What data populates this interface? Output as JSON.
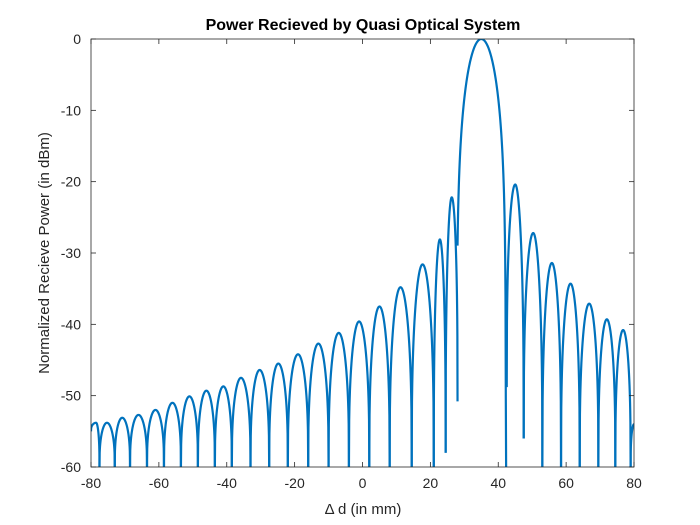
{
  "chart_data": {
    "type": "line",
    "title": "Power Recieved by Quasi Optical System",
    "xlabel": "Δ d (in mm)",
    "ylabel": "Normalized Recieve Power (in dBm)",
    "xlim": [
      -80,
      80
    ],
    "ylim": [
      -60,
      0
    ],
    "xticks": [
      "-80",
      "-60",
      "-40",
      "-20",
      "0",
      "20",
      "40",
      "60",
      "80"
    ],
    "yticks": [
      "0",
      "-10",
      "-20",
      "-30",
      "-40",
      "-50",
      "-60"
    ],
    "grid": false,
    "line_color": "#0072BD",
    "main_lobe": {
      "center": 35,
      "peak": 0,
      "nulls": [
        28,
        42.5
      ]
    },
    "lobes": [
      {
        "left": -80,
        "right": -77.5,
        "peak_x": -78.5,
        "peak": -53.8,
        "floor_left": -55,
        "floor_right": -60
      },
      {
        "left": -77.5,
        "right": -73,
        "peak_x": -75.3,
        "peak": -53.8,
        "floor_left": -60,
        "floor_right": -60
      },
      {
        "left": -73,
        "right": -68.5,
        "peak_x": -70.8,
        "peak": -53.1,
        "floor_left": -60,
        "floor_right": -60
      },
      {
        "left": -68.5,
        "right": -63.5,
        "peak_x": -66,
        "peak": -52.7,
        "floor_left": -60,
        "floor_right": -60
      },
      {
        "left": -63.5,
        "right": -58.5,
        "peak_x": -61,
        "peak": -52.0,
        "floor_left": -60,
        "floor_right": -60
      },
      {
        "left": -58.5,
        "right": -53.5,
        "peak_x": -56,
        "peak": -51.0,
        "floor_left": -60,
        "floor_right": -60
      },
      {
        "left": -53.5,
        "right": -48.5,
        "peak_x": -51,
        "peak": -50.1,
        "floor_left": -60,
        "floor_right": -60
      },
      {
        "left": -48.5,
        "right": -43.5,
        "peak_x": -46,
        "peak": -49.3,
        "floor_left": -60,
        "floor_right": -60
      },
      {
        "left": -43.5,
        "right": -38.5,
        "peak_x": -41,
        "peak": -48.7,
        "floor_left": -60,
        "floor_right": -60
      },
      {
        "left": -38.5,
        "right": -33,
        "peak_x": -35.8,
        "peak": -47.5,
        "floor_left": -60,
        "floor_right": -60
      },
      {
        "left": -33,
        "right": -27.5,
        "peak_x": -30.3,
        "peak": -46.4,
        "floor_left": -60,
        "floor_right": -60
      },
      {
        "left": -27.5,
        "right": -22,
        "peak_x": -24.8,
        "peak": -45.5,
        "floor_left": -60,
        "floor_right": -60
      },
      {
        "left": -22,
        "right": -16,
        "peak_x": -19,
        "peak": -44.2,
        "floor_left": -60,
        "floor_right": -60
      },
      {
        "left": -16,
        "right": -10,
        "peak_x": -13,
        "peak": -42.7,
        "floor_left": -60,
        "floor_right": -60
      },
      {
        "left": -10,
        "right": -4,
        "peak_x": -7,
        "peak": -41.2,
        "floor_left": -60,
        "floor_right": -60
      },
      {
        "left": -4,
        "right": 2,
        "peak_x": -1,
        "peak": -39.6,
        "floor_left": -60,
        "floor_right": -60
      },
      {
        "left": 2,
        "right": 8,
        "peak_x": 5,
        "peak": -37.5,
        "floor_left": -60,
        "floor_right": -60
      },
      {
        "left": 8,
        "right": 14.5,
        "peak_x": 11.2,
        "peak": -34.8,
        "floor_left": -60,
        "floor_right": -60
      },
      {
        "left": 14.5,
        "right": 21,
        "peak_x": 17.7,
        "peak": -31.6,
        "floor_left": -60,
        "floor_right": -60
      },
      {
        "left": 21,
        "right": 24.5,
        "peak_x": 22.8,
        "peak": -28.1,
        "floor_left": -60,
        "floor_right": -58
      },
      {
        "left": 24.5,
        "right": 28,
        "peak_x": 26.3,
        "peak": -22.2,
        "floor_left": -58,
        "floor_right": -50.8
      },
      {
        "left": 42.5,
        "right": 47.5,
        "peak_x": 45,
        "peak": -20.4,
        "floor_left": -48.8,
        "floor_right": -56
      },
      {
        "left": 47.5,
        "right": 53,
        "peak_x": 50.3,
        "peak": -27.2,
        "floor_left": -56,
        "floor_right": -60
      },
      {
        "left": 53,
        "right": 58.5,
        "peak_x": 55.8,
        "peak": -31.4,
        "floor_left": -60,
        "floor_right": -60
      },
      {
        "left": 58.5,
        "right": 64,
        "peak_x": 61.3,
        "peak": -34.3,
        "floor_left": -60,
        "floor_right": -60
      },
      {
        "left": 64,
        "right": 69.5,
        "peak_x": 66.8,
        "peak": -37.1,
        "floor_left": -60,
        "floor_right": -60
      },
      {
        "left": 69.5,
        "right": 74.5,
        "peak_x": 72,
        "peak": -39.3,
        "floor_left": -60,
        "floor_right": -60
      },
      {
        "left": 74.5,
        "right": 79,
        "peak_x": 76.8,
        "peak": -40.8,
        "floor_left": -60,
        "floor_right": -60
      },
      {
        "left": 79,
        "right": 80,
        "peak_x": 80,
        "peak": -54.0,
        "floor_left": -60,
        "floor_right": -54
      }
    ]
  }
}
